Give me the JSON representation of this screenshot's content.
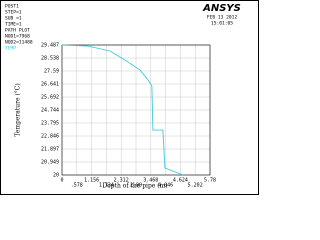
{
  "header": {
    "lines": [
      "POST1",
      "STEP=1",
      "SUB =1",
      "TIME=1",
      "PATH PLOT",
      "NOD1=7968",
      "NOD2=11488"
    ],
    "brand": "ANSYS",
    "date": "FEB 13 2012",
    "time": "15:01:05"
  },
  "chart_data": {
    "type": "line",
    "xlabel": "Depth of the pipe (m)",
    "ylabel": "Temperature (°C)",
    "x": [
      0,
      1.015,
      1.875,
      2.46,
      3.05,
      3.36,
      3.51,
      3.55,
      3.94,
      4.02,
      4.73
    ],
    "series": [
      {
        "name": "TEMP",
        "color": "#3fc8dc",
        "values": [
          29.487,
          29.41,
          29.05,
          28.39,
          27.66,
          26.93,
          26.49,
          23.28,
          23.28,
          20.51,
          20
        ]
      }
    ],
    "xlim": [
      0,
      5.78
    ],
    "ylim": [
      20,
      29.487
    ],
    "xticks": [
      0,
      {
        "value": 0.578,
        "label": ".578"
      },
      1.156,
      1.734,
      2.312,
      2.89,
      3.468,
      4.046,
      4.624,
      5.202,
      5.78
    ],
    "yticks": [
      20,
      20.949,
      21.897,
      22.846,
      23.795,
      24.744,
      25.692,
      26.641,
      27.59,
      28.538,
      29.487
    ],
    "grid": true
  }
}
